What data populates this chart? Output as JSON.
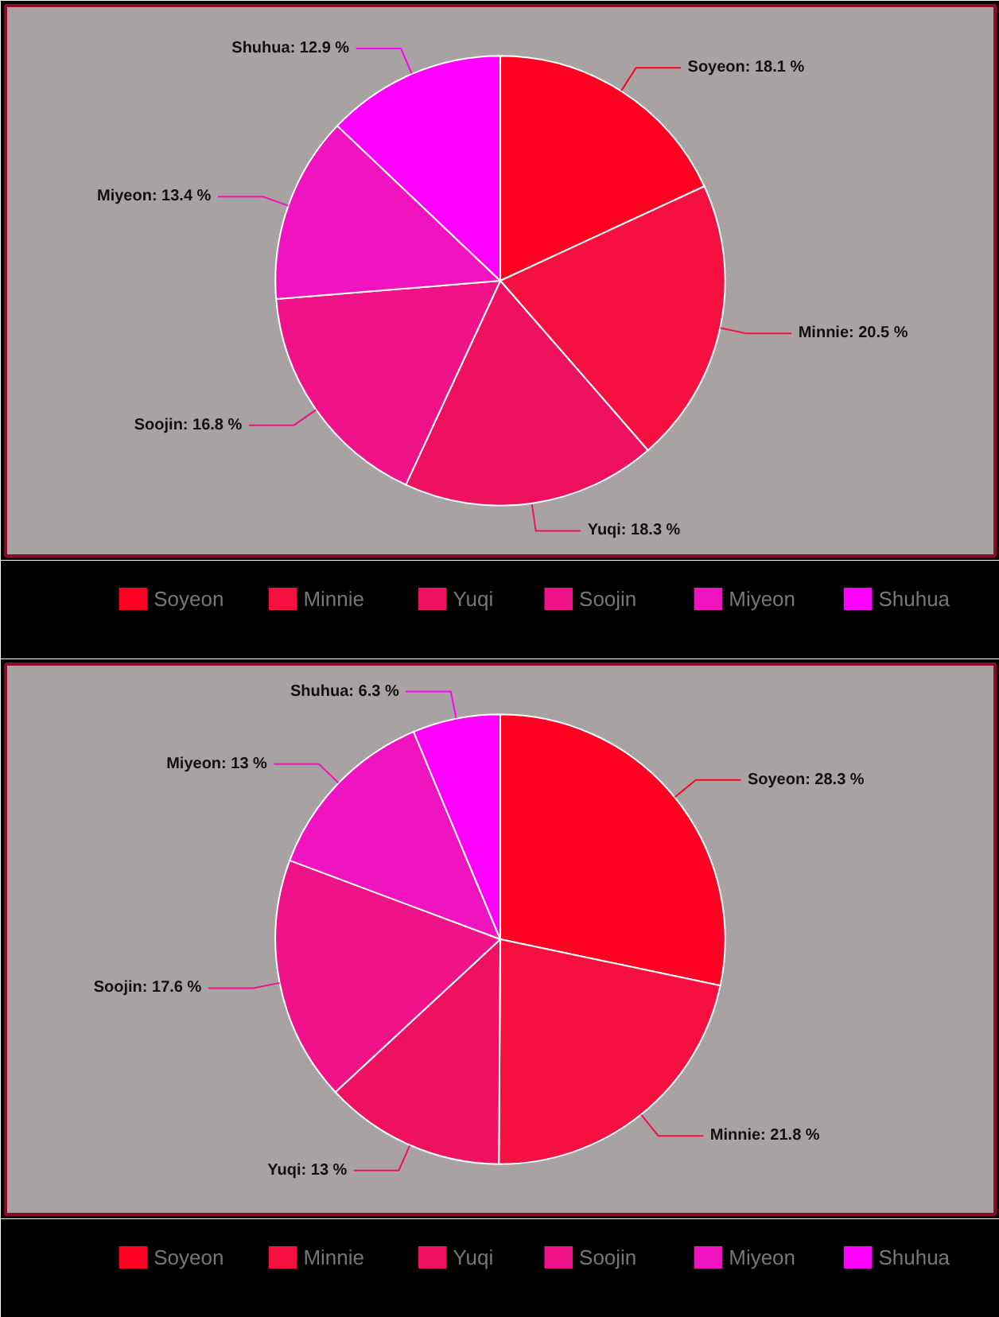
{
  "chart_data": [
    {
      "type": "pie",
      "categories": [
        "Soyeon",
        "Minnie",
        "Yuqi",
        "Soojin",
        "Miyeon",
        "Shuhua"
      ],
      "values": [
        18.1,
        20.5,
        18.3,
        16.8,
        13.4,
        12.9
      ],
      "value_labels": [
        "Soyeon: 18.1 %",
        "Minnie: 20.5 %",
        "Yuqi: 18.3 %",
        "Soojin: 16.8 %",
        "Miyeon: 13.4 %",
        "Shuhua: 12.9 %"
      ],
      "colors": [
        "#ff0022",
        "#f5103f",
        "#ee1160",
        "#f01288",
        "#f014c0",
        "#ff00ff"
      ],
      "legend": "bottom"
    },
    {
      "type": "pie",
      "categories": [
        "Soyeon",
        "Minnie",
        "Yuqi",
        "Soojin",
        "Miyeon",
        "Shuhua"
      ],
      "values": [
        28.3,
        21.8,
        13,
        17.6,
        13,
        6.3
      ],
      "value_labels": [
        "Soyeon: 28.3 %",
        "Minnie: 21.8 %",
        "Yuqi: 13 %",
        "Soojin: 17.6 %",
        "Miyeon: 13 %",
        "Shuhua: 6.3 %"
      ],
      "colors": [
        "#ff0022",
        "#f5103f",
        "#ee1160",
        "#f01288",
        "#f014c0",
        "#ff00ff"
      ],
      "legend": "bottom"
    }
  ]
}
